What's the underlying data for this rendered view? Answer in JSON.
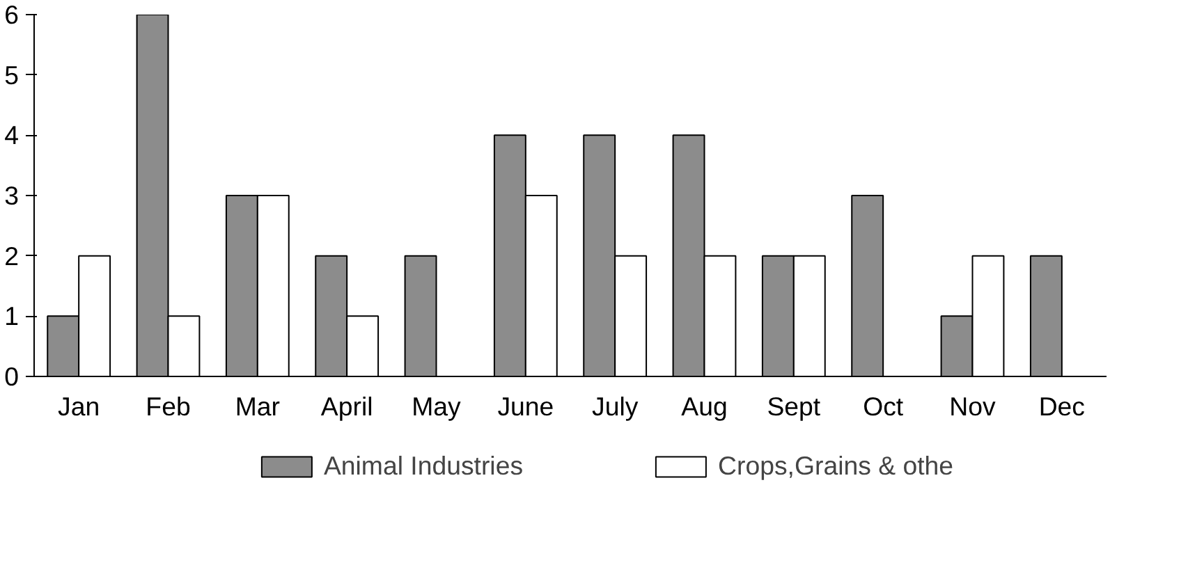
{
  "chart_data": {
    "type": "bar",
    "categories": [
      "Jan",
      "Feb",
      "Mar",
      "April",
      "May",
      "June",
      "July",
      "Aug",
      "Sept",
      "Oct",
      "Nov",
      "Dec"
    ],
    "series": [
      {
        "name": "Animal Industries",
        "color": "#8c8c8c",
        "values": [
          1,
          6,
          3,
          2,
          2,
          4,
          4,
          4,
          2,
          3,
          1,
          2
        ]
      },
      {
        "name": "Crops,Grains & othe",
        "color": "#ffffff",
        "values": [
          2,
          1,
          3,
          1,
          0,
          3,
          2,
          2,
          2,
          0,
          2,
          0
        ]
      }
    ],
    "ylim": [
      0,
      6
    ],
    "yticks": [
      0,
      1,
      2,
      3,
      4,
      5,
      6
    ],
    "grid": false,
    "legend": "bottom"
  }
}
